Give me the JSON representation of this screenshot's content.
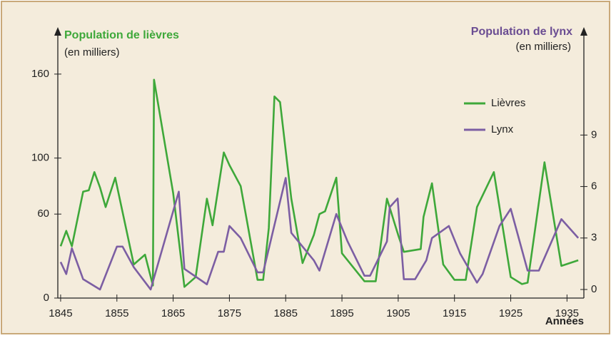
{
  "chart_data": {
    "type": "line",
    "y_label": "Population de lièvres",
    "y_unit": "(en milliers)",
    "y2_label": "Population de lynx",
    "y2_unit": "(en milliers)",
    "x_label": "Années",
    "xlim": [
      1844.5,
      1938
    ],
    "xticks": [
      1845,
      1855,
      1865,
      1875,
      1885,
      1895,
      1905,
      1915,
      1925,
      1935
    ],
    "ylim": [
      0,
      190
    ],
    "yticks": [
      0,
      60,
      100,
      160
    ],
    "y2lim": [
      -0.5,
      15
    ],
    "y2ticks": [
      0,
      3,
      6,
      9
    ],
    "legend": "upper right",
    "series": [
      {
        "name": "Lièvres",
        "color": "#3ea83a",
        "x": [
          1845,
          1846,
          1847,
          1849,
          1850,
          1851,
          1852,
          1853,
          1854.7,
          1858,
          1860,
          1861.4,
          1861.6,
          1865,
          1867,
          1869,
          1871,
          1872,
          1874,
          1875,
          1877,
          1880,
          1881,
          1882,
          1883,
          1884,
          1886,
          1888,
          1890,
          1891,
          1892,
          1894,
          1895,
          1897,
          1899,
          1901,
          1903,
          1905,
          1906,
          1909,
          1909.5,
          1911,
          1913,
          1915,
          1917,
          1919,
          1922,
          1925,
          1927,
          1928,
          1931,
          1934,
          1937
        ],
        "values": [
          37,
          48,
          37,
          76,
          77,
          90,
          79,
          65,
          86,
          24,
          31,
          9,
          156,
          75,
          8,
          15,
          71,
          52,
          104,
          95,
          80,
          13,
          13,
          50,
          144,
          140,
          71,
          25,
          45,
          60,
          62,
          86,
          32,
          22,
          12,
          12,
          71,
          45,
          33,
          35,
          58,
          82,
          24,
          13,
          13,
          65,
          90,
          15,
          10,
          11,
          97,
          23,
          27
        ]
      },
      {
        "name": "Lynx",
        "color": "#7c5ea3",
        "axis": "y2",
        "x": [
          1845,
          1846,
          1847,
          1849,
          1852,
          1855,
          1856,
          1858,
          1861,
          1866,
          1867,
          1871,
          1873,
          1874,
          1875,
          1877,
          1880,
          1881,
          1885,
          1886,
          1890,
          1891,
          1894,
          1896,
          1899,
          1900,
          1903,
          1903.5,
          1904.9,
          1906,
          1908,
          1910,
          1911,
          1914,
          1916,
          1919,
          1920,
          1923,
          1925,
          1928,
          1930,
          1934,
          1937
        ],
        "values": [
          1.6,
          0.9,
          2.4,
          0.6,
          0,
          2.5,
          2.5,
          1.3,
          0,
          5.7,
          1.2,
          0.3,
          2.2,
          2.2,
          3.7,
          3,
          1,
          1,
          6.5,
          3.3,
          1.7,
          1.1,
          4.4,
          2.8,
          0.8,
          0.8,
          2.8,
          4.8,
          5.3,
          0.6,
          0.6,
          1.7,
          3,
          3.7,
          2.1,
          0.4,
          0.9,
          3.7,
          4.7,
          1.1,
          1.1,
          4.1,
          3
        ]
      }
    ]
  }
}
